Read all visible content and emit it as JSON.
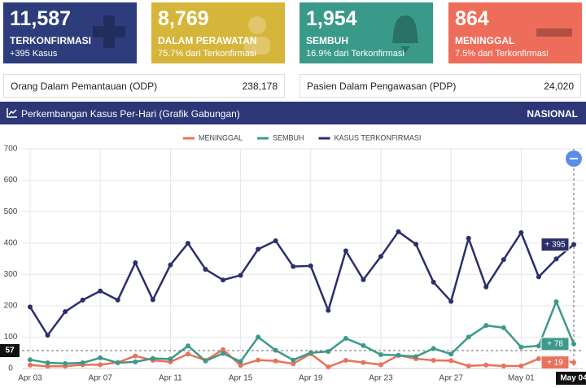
{
  "cards": [
    {
      "value": "11,587",
      "label": "TERKONFIRMASI",
      "sub": "+395 Kasus"
    },
    {
      "value": "8,769",
      "label": "DALAM PERAWATAN",
      "sub": "75.7% dari Terkonfirmasi"
    },
    {
      "value": "1,954",
      "label": "SEMBUH",
      "sub": "16.9% dari Terkonfirmasi"
    },
    {
      "value": "864",
      "label": "MENINGGAL",
      "sub": "7.5% dari Terkonfirmasi"
    }
  ],
  "stats": [
    {
      "label": "Orang Dalam Pemantauan (ODP)",
      "value": "238,178"
    },
    {
      "label": "Pasien Dalam Pengawasan (PDP)",
      "value": "24,020"
    }
  ],
  "header": {
    "title": "Perkembangan Kasus Per-Hari (Grafik Gabungan)",
    "region": "NASIONAL"
  },
  "chart_data": {
    "type": "line",
    "categories": [
      "Apr 03",
      null,
      null,
      null,
      "Apr 07",
      null,
      null,
      null,
      "Apr 11",
      null,
      null,
      null,
      "Apr 15",
      null,
      null,
      null,
      "Apr 19",
      null,
      null,
      null,
      "Apr 23",
      null,
      null,
      null,
      "Apr 27",
      null,
      null,
      null,
      "May 01",
      null,
      null,
      "May 04"
    ],
    "series": [
      {
        "name": "MENINGGAL",
        "color": "#e8735a",
        "values": [
          11,
          7,
          7,
          12,
          12,
          19,
          40,
          26,
          21,
          46,
          26,
          60,
          10,
          27,
          24,
          15,
          47,
          5,
          26,
          19,
          12,
          42,
          31,
          26,
          25,
          8,
          11,
          8,
          8,
          31,
          31,
          19
        ],
        "end_label": "+ 19"
      },
      {
        "name": "SEMBUH",
        "color": "#3d9a8b",
        "values": [
          28,
          18,
          16,
          18,
          34,
          18,
          21,
          32,
          30,
          72,
          24,
          48,
          22,
          100,
          58,
          27,
          50,
          54,
          96,
          73,
          44,
          42,
          38,
          64,
          46,
          100,
          137,
          130,
          68,
          72,
          213,
          78
        ],
        "end_label": "+ 78"
      },
      {
        "name": "KASUS TERKONFIRMASI",
        "color": "#2b2f6b",
        "values": [
          196,
          106,
          181,
          218,
          247,
          218,
          337,
          219,
          330,
          399,
          316,
          282,
          297,
          380,
          407,
          325,
          327,
          185,
          375,
          283,
          357,
          436,
          396,
          275,
          214,
          415,
          260,
          347,
          433,
          292,
          349,
          395
        ],
        "end_label": "+ 395"
      }
    ],
    "ylim": [
      0,
      700
    ],
    "yticks": [
      0,
      100,
      200,
      300,
      400,
      500,
      600,
      700
    ],
    "grid": true,
    "legend": "top",
    "crosshair_y": 57
  }
}
